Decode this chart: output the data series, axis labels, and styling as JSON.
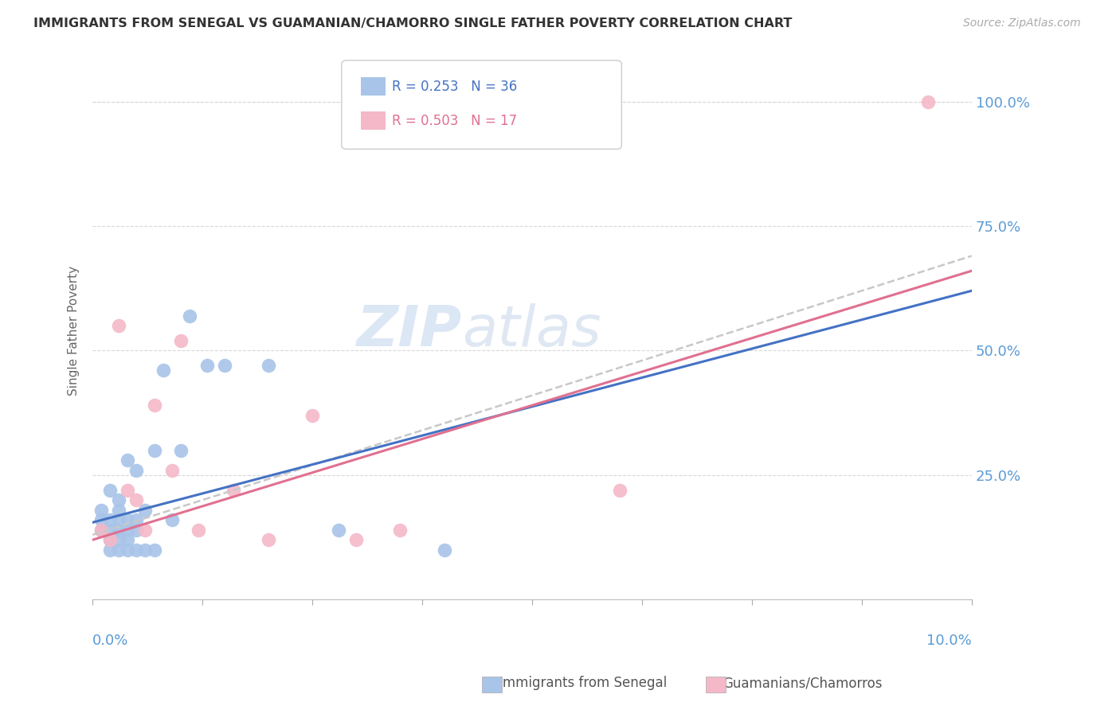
{
  "title": "IMMIGRANTS FROM SENEGAL VS GUAMANIAN/CHAMORRO SINGLE FATHER POVERTY CORRELATION CHART",
  "source": "Source: ZipAtlas.com",
  "ylabel": "Single Father Poverty",
  "ytick_labels": [
    "100.0%",
    "75.0%",
    "50.0%",
    "25.0%"
  ],
  "ytick_values": [
    1.0,
    0.75,
    0.5,
    0.25
  ],
  "xlim": [
    0.0,
    0.1
  ],
  "ylim": [
    0.0,
    1.08
  ],
  "blue_color": "#a8c4e8",
  "pink_color": "#f4b8c8",
  "line_blue": "#4472c4",
  "line_pink": "#e07090",
  "line_dashed": "#c8c8c8",
  "senegal_x": [
    0.001,
    0.001,
    0.001,
    0.002,
    0.002,
    0.002,
    0.002,
    0.002,
    0.003,
    0.003,
    0.003,
    0.003,
    0.003,
    0.003,
    0.004,
    0.004,
    0.004,
    0.004,
    0.004,
    0.005,
    0.005,
    0.005,
    0.005,
    0.006,
    0.006,
    0.007,
    0.007,
    0.008,
    0.009,
    0.01,
    0.011,
    0.013,
    0.015,
    0.02,
    0.028,
    0.04
  ],
  "senegal_y": [
    0.14,
    0.16,
    0.18,
    0.1,
    0.12,
    0.14,
    0.16,
    0.22,
    0.1,
    0.12,
    0.14,
    0.16,
    0.18,
    0.2,
    0.1,
    0.12,
    0.14,
    0.16,
    0.28,
    0.1,
    0.14,
    0.16,
    0.26,
    0.1,
    0.18,
    0.1,
    0.3,
    0.46,
    0.16,
    0.3,
    0.57,
    0.47,
    0.47,
    0.47,
    0.14,
    0.1
  ],
  "guam_x": [
    0.001,
    0.002,
    0.003,
    0.004,
    0.005,
    0.006,
    0.007,
    0.009,
    0.01,
    0.012,
    0.016,
    0.02,
    0.025,
    0.03,
    0.035,
    0.06,
    0.095
  ],
  "guam_y": [
    0.14,
    0.12,
    0.55,
    0.22,
    0.2,
    0.14,
    0.39,
    0.26,
    0.52,
    0.14,
    0.22,
    0.12,
    0.37,
    0.12,
    0.14,
    0.22,
    1.0
  ],
  "line_start_x": 0.0,
  "line_end_x": 0.1,
  "blue_line_y0": 0.155,
  "blue_line_y1": 0.62,
  "pink_line_y0": 0.12,
  "pink_line_y1": 0.66,
  "dash_line_y0": 0.13,
  "dash_line_y1": 0.69
}
